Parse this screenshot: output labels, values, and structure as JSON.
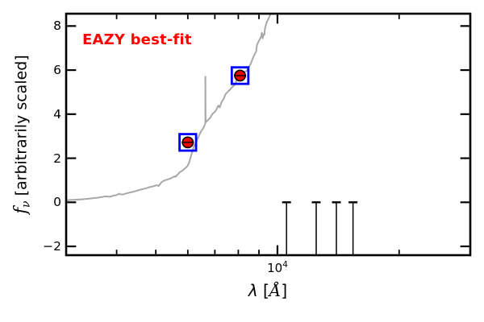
{
  "figure": {
    "annotation": {
      "label": "EAZY best-fit",
      "color": "#ff0000"
    },
    "xlabel": {
      "lambda": "λ",
      "open": " [",
      "angstrom": "Å",
      "close": "]"
    },
    "ylabel": {
      "f": "f",
      "nu": "ν",
      "rest": " [arbitrarily scaled]"
    },
    "xtick_label": {
      "base": "10",
      "exp": "4"
    }
  },
  "chart_data": {
    "type": "line",
    "title": "",
    "xlabel": "lambda [Angstrom]",
    "ylabel": "f_nu [arbitrarily scaled]",
    "x_scale": "log",
    "xlim": [
      3000,
      30000
    ],
    "ylim": [
      -2.4,
      8.56
    ],
    "grid": false,
    "legend": "none",
    "x_major_ticks": [
      10000
    ],
    "x_minor_ticks": [
      4000,
      5000,
      6000,
      7000,
      8000,
      9000,
      20000
    ],
    "y_major_ticks": [
      -2,
      0,
      2,
      4,
      6,
      8
    ],
    "colors": {
      "background": "#ffffff",
      "axes": "#000000",
      "spectrum": "#a8a8a8",
      "marker_fill": "#ee0000",
      "marker_edge": "#000000",
      "marker_box": "#0000ff",
      "limit_lines": "#000000",
      "annotation": "#ff0000"
    },
    "series": [
      {
        "name": "eazy-model-spectrum",
        "type": "line",
        "color": "#a8a8a8",
        "points": [
          [
            3000,
            0.09
          ],
          [
            3110,
            0.11
          ],
          [
            3260,
            0.13
          ],
          [
            3420,
            0.17
          ],
          [
            3580,
            0.21
          ],
          [
            3680,
            0.24
          ],
          [
            3750,
            0.27
          ],
          [
            3850,
            0.25
          ],
          [
            3920,
            0.3
          ],
          [
            4000,
            0.33
          ],
          [
            4050,
            0.39
          ],
          [
            4090,
            0.36
          ],
          [
            4150,
            0.36
          ],
          [
            4260,
            0.42
          ],
          [
            4400,
            0.48
          ],
          [
            4500,
            0.53
          ],
          [
            4610,
            0.59
          ],
          [
            4720,
            0.63
          ],
          [
            4830,
            0.69
          ],
          [
            4940,
            0.73
          ],
          [
            5030,
            0.78
          ],
          [
            5080,
            0.74
          ],
          [
            5130,
            0.84
          ],
          [
            5170,
            0.92
          ],
          [
            5270,
            1.0
          ],
          [
            5370,
            1.05
          ],
          [
            5420,
            1.07
          ],
          [
            5490,
            1.12
          ],
          [
            5570,
            1.18
          ],
          [
            5600,
            1.16
          ],
          [
            5640,
            1.23
          ],
          [
            5700,
            1.32
          ],
          [
            5750,
            1.38
          ],
          [
            5830,
            1.45
          ],
          [
            5880,
            1.51
          ],
          [
            5940,
            1.58
          ],
          [
            5990,
            1.65
          ],
          [
            6050,
            1.82
          ],
          [
            6100,
            2.04
          ],
          [
            6160,
            2.33
          ],
          [
            6220,
            2.59
          ],
          [
            6280,
            2.7
          ],
          [
            6360,
            2.92
          ],
          [
            6450,
            3.18
          ],
          [
            6570,
            3.4
          ],
          [
            6633,
            3.6
          ],
          [
            6633,
            5.7
          ],
          [
            6640,
            3.62
          ],
          [
            6730,
            3.73
          ],
          [
            6820,
            3.84
          ],
          [
            6910,
            4.02
          ],
          [
            6980,
            4.08
          ],
          [
            7040,
            4.17
          ],
          [
            7140,
            4.39
          ],
          [
            7200,
            4.3
          ],
          [
            7270,
            4.54
          ],
          [
            7370,
            4.72
          ],
          [
            7440,
            4.91
          ],
          [
            7540,
            5.02
          ],
          [
            7650,
            5.13
          ],
          [
            7750,
            5.26
          ],
          [
            7820,
            5.31
          ],
          [
            7930,
            5.53
          ],
          [
            8010,
            5.64
          ],
          [
            8040,
            5.6
          ],
          [
            8080,
            5.72
          ],
          [
            8190,
            5.86
          ],
          [
            8310,
            5.94
          ],
          [
            8380,
            5.95
          ],
          [
            8460,
            6.08
          ],
          [
            8580,
            6.27
          ],
          [
            8700,
            6.56
          ],
          [
            8860,
            6.86
          ],
          [
            8900,
            7.15
          ],
          [
            8980,
            7.3
          ],
          [
            9110,
            7.52
          ],
          [
            9150,
            7.7
          ],
          [
            9190,
            7.44
          ],
          [
            9230,
            7.63
          ],
          [
            9280,
            7.6
          ],
          [
            9320,
            7.92
          ],
          [
            9410,
            8.18
          ],
          [
            9540,
            8.4
          ],
          [
            9620,
            8.56
          ],
          [
            9690,
            8.75
          ]
        ]
      },
      {
        "name": "observed-photometry",
        "type": "scatter",
        "points": [
          [
            6000,
            2.72
          ],
          [
            8080,
            5.75
          ]
        ]
      },
      {
        "name": "zero-flux-limit-markers",
        "type": "limit-lines",
        "x": [
          10530,
          12470,
          13990,
          15380
        ],
        "y_top": 0
      }
    ]
  }
}
